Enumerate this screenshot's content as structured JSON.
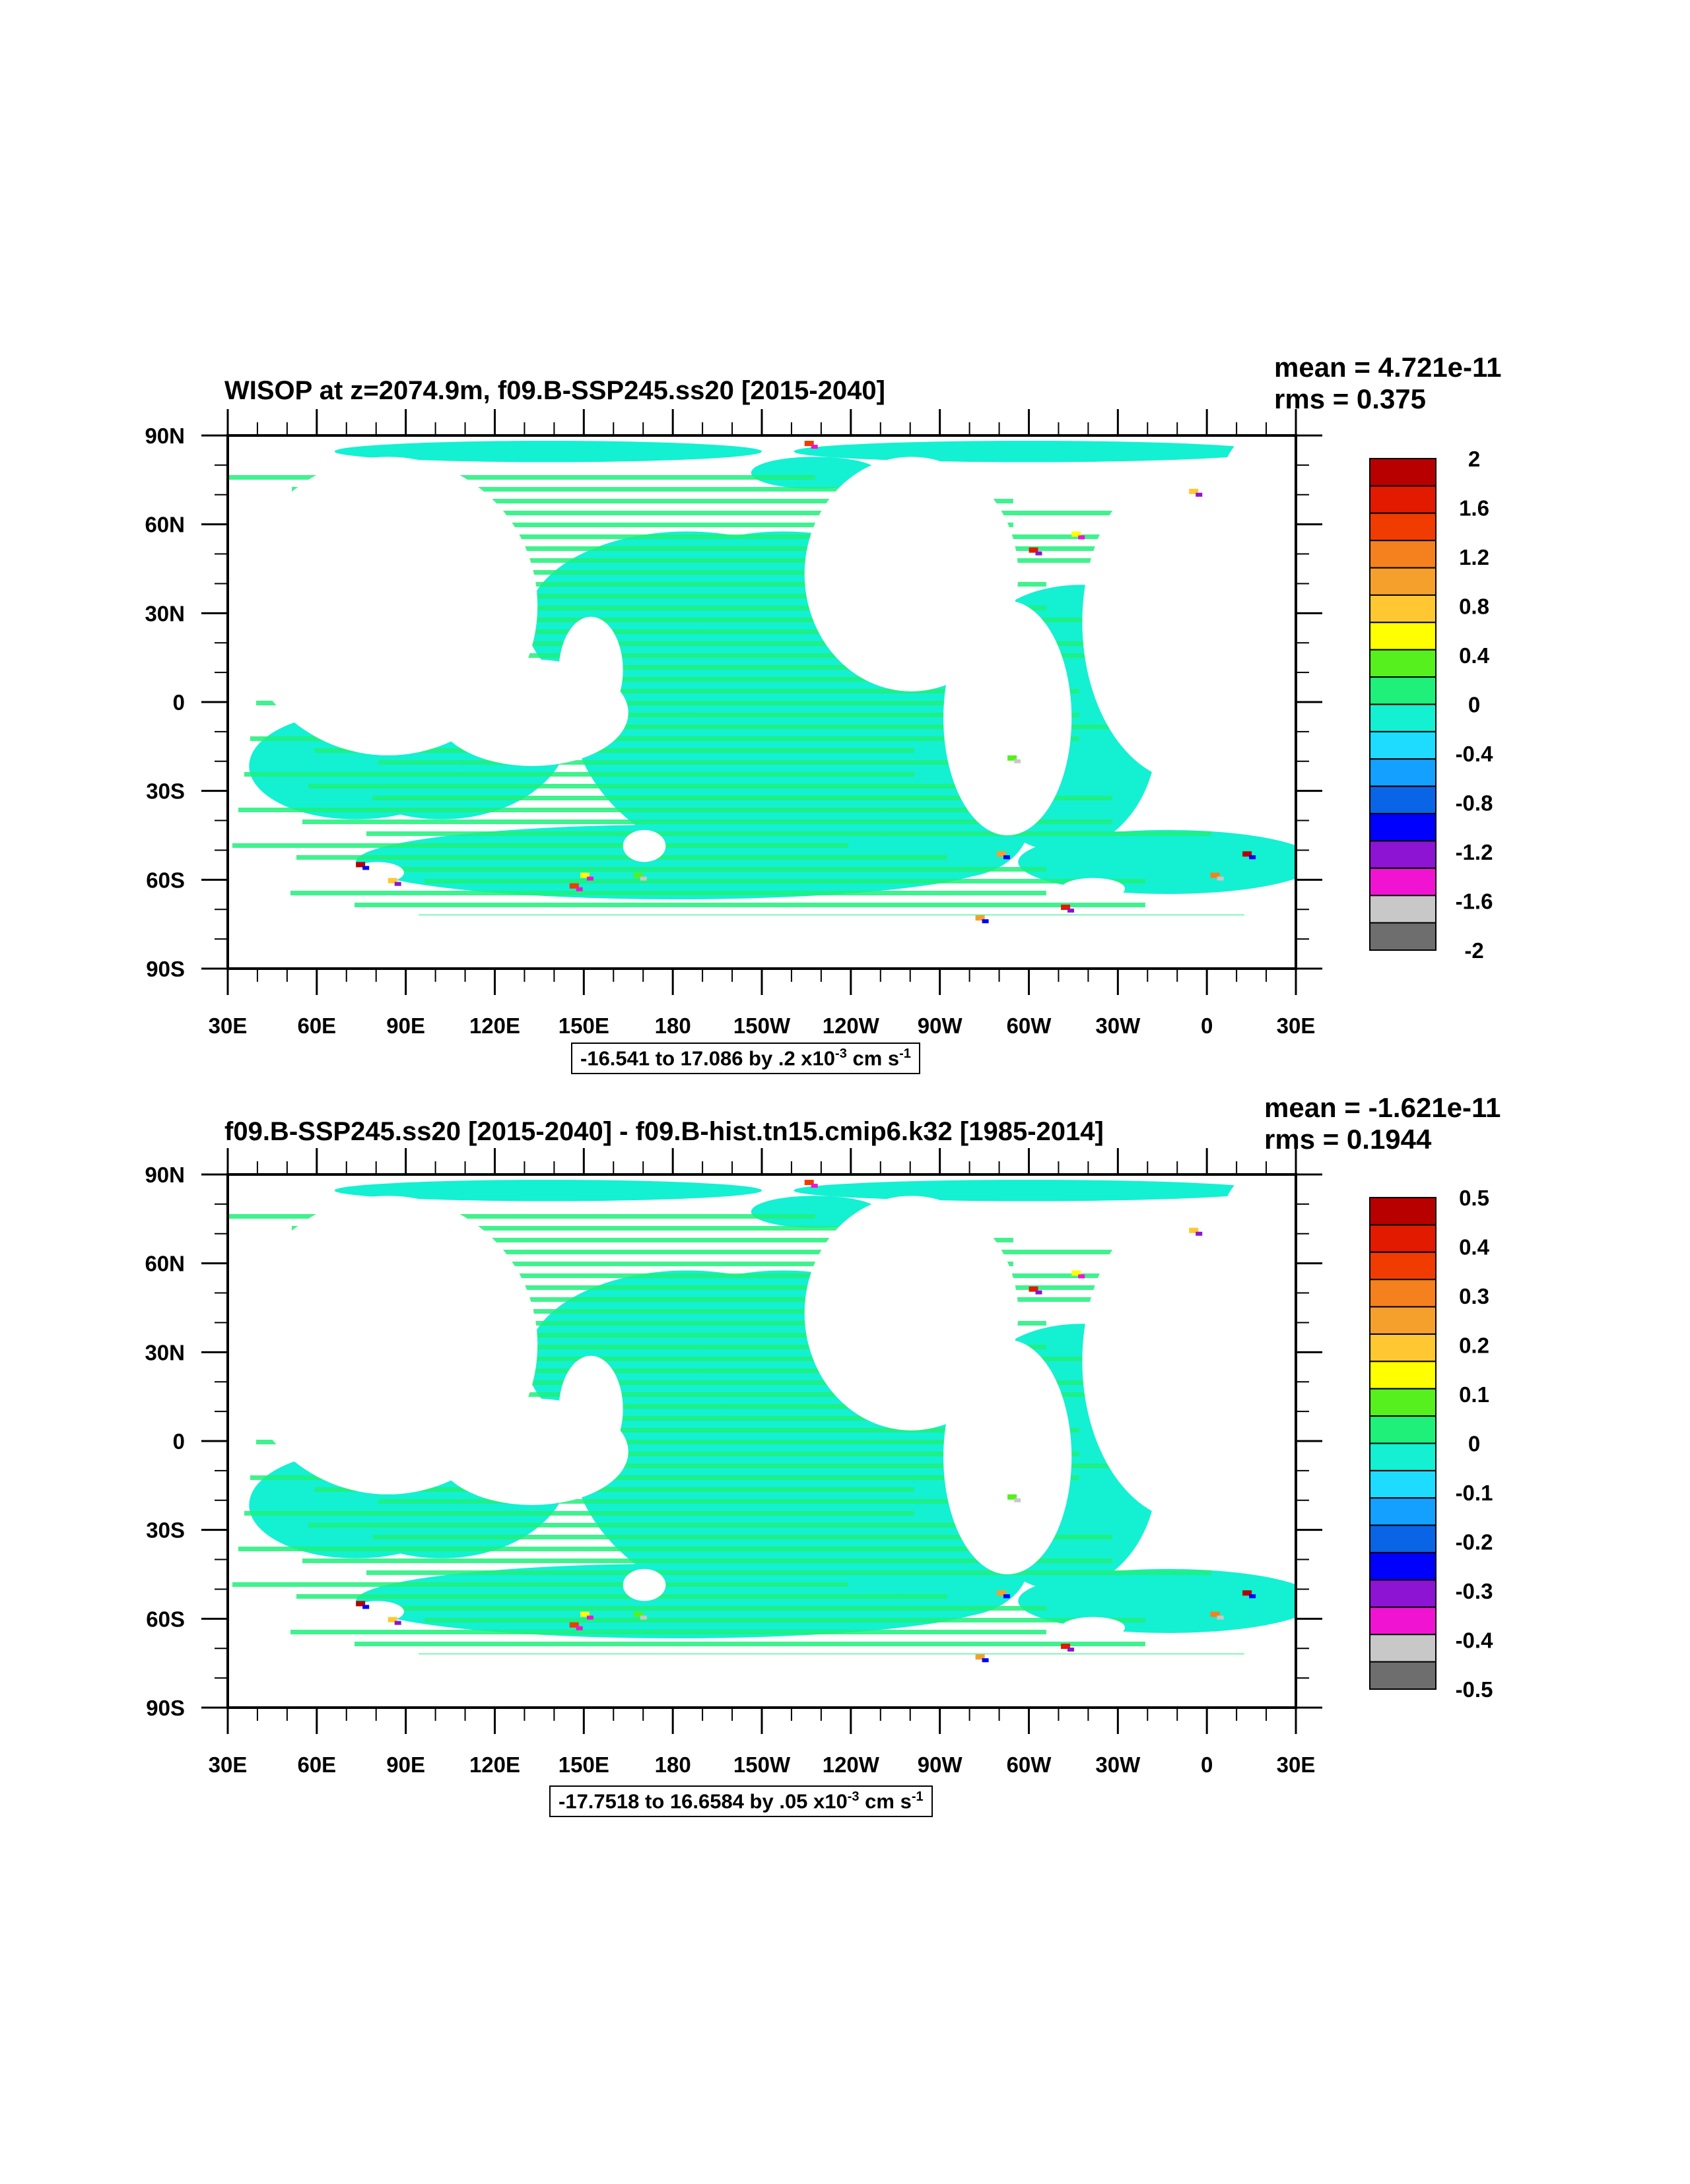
{
  "panels": [
    {
      "title": "WISOP at z=2074.9m, f09.B-SSP245.ss20 [2015-2040]",
      "stats": {
        "mean": "mean = 4.721e-11",
        "rms": "rms = 0.375"
      },
      "y_labels": [
        "90N",
        "60N",
        "30N",
        "0",
        "30S",
        "60S",
        "90S"
      ],
      "x_labels": [
        "30E",
        "60E",
        "90E",
        "120E",
        "150E",
        "180",
        "150W",
        "120W",
        "90W",
        "60W",
        "30W",
        "0",
        "30E"
      ],
      "colorbar_labels": [
        "2",
        "1.6",
        "1.2",
        "0.8",
        "0.4",
        "0",
        "-0.4",
        "-0.8",
        "-1.2",
        "-1.6",
        "-2"
      ],
      "range": {
        "text": "-16.541 to 17.086 by .2 x10",
        "exp": "-3",
        "unit": " cm s",
        "unit_exp": "-1"
      }
    },
    {
      "title": "f09.B-SSP245.ss20 [2015-2040] - f09.B-hist.tn15.cmip6.k32 [1985-2014]",
      "stats": {
        "mean": "mean = -1.621e-11",
        "rms": "rms = 0.1944"
      },
      "y_labels": [
        "90N",
        "60N",
        "30N",
        "0",
        "30S",
        "60S",
        "90S"
      ],
      "x_labels": [
        "30E",
        "60E",
        "90E",
        "120E",
        "150E",
        "180",
        "150W",
        "120W",
        "90W",
        "60W",
        "30W",
        "0",
        "30E"
      ],
      "colorbar_labels": [
        "0.5",
        "0.4",
        "0.3",
        "0.2",
        "0.1",
        "0",
        "-0.1",
        "-0.2",
        "-0.3",
        "-0.4",
        "-0.5"
      ],
      "range": {
        "text": "-17.7518 to 16.6584 by .05 x10",
        "exp": "-3",
        "unit": " cm s",
        "unit_exp": "-1"
      }
    }
  ],
  "colors": {
    "ocean_green": "#1ef07a",
    "ocean_cyan": "#14f0d2",
    "land": "#ffffff",
    "colorbar": [
      "#b80000",
      "#e21a00",
      "#f03c00",
      "#f5801e",
      "#f5a02d",
      "#ffc832",
      "#ffff00",
      "#55f01e",
      "#1ef07a",
      "#14f0d2",
      "#1edcff",
      "#14a0ff",
      "#0a64e6",
      "#0000ff",
      "#8c14d2",
      "#f014d2",
      "#c8c8c8",
      "#6e6e6e"
    ]
  }
}
